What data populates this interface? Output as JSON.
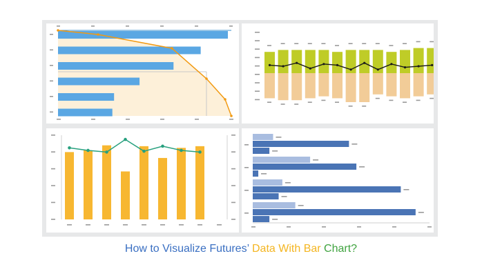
{
  "caption": {
    "part1": "How to Visualize Futures’",
    "part2": "Data With Bar",
    "part3": "Chart?",
    "colors": {
      "part1": "#3a6fc2",
      "part2": "#f4b520",
      "part3": "#3fa33f"
    }
  },
  "chart_data": [
    {
      "type": "bar",
      "orientation": "horizontal",
      "description_overlay": "line",
      "bar_color": "#5aa7e3",
      "line_color": "#f29a12",
      "area_color": "#fdf0d9",
      "values": [
        100,
        84,
        68,
        48,
        33,
        32
      ],
      "line_values": [
        100,
        95,
        76,
        53,
        29,
        0
      ]
    },
    {
      "type": "bar",
      "diverging": true,
      "pos_color": "#bfcc27",
      "neg_color": "#f2cc98",
      "line_color": "#1a1a1a",
      "pos_values": [
        11,
        12,
        12,
        12,
        12,
        11,
        12,
        12,
        12,
        11,
        12,
        13,
        13
      ],
      "neg_values": [
        13,
        14,
        14,
        13,
        12,
        13,
        15,
        15,
        11,
        12,
        13,
        12,
        11
      ],
      "line_values": [
        1,
        0,
        3,
        -2,
        2,
        1,
        -3,
        3,
        -3,
        2,
        -1,
        0,
        1
      ]
    },
    {
      "type": "bar",
      "bar_color": "#f7b731",
      "line_color": "#27a07e",
      "values": [
        80,
        82,
        88,
        57,
        87,
        73,
        85,
        87
      ],
      "line_values": [
        85,
        82,
        80,
        95,
        81,
        87,
        82,
        80
      ],
      "ylim": [
        0,
        100
      ]
    },
    {
      "type": "bar",
      "orientation": "horizontal",
      "grouped": true,
      "dark_color": "#4a74b5",
      "light_color": "#a9bde0",
      "groups": [
        {
          "light": 11,
          "dark": 52,
          "small": 9
        },
        {
          "light": 31,
          "dark": 56,
          "small": 3
        },
        {
          "light": 16,
          "dark": 80,
          "small": 14
        },
        {
          "light": 23,
          "dark": 88,
          "small": 9
        }
      ]
    }
  ]
}
